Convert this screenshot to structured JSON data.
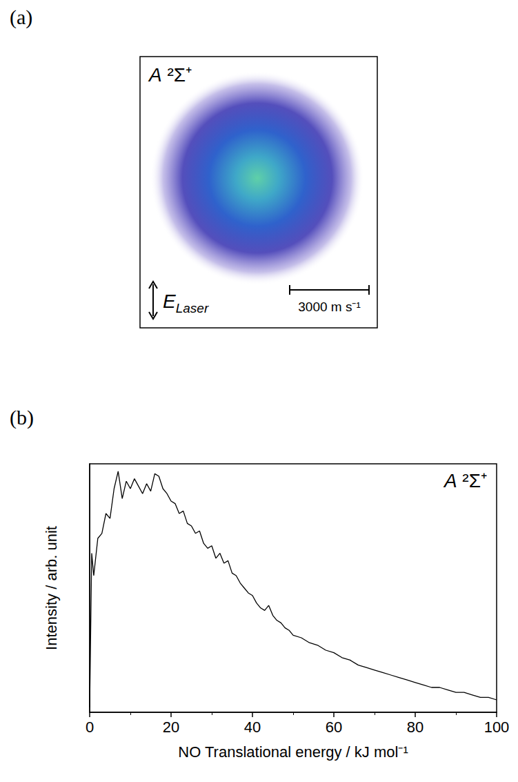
{
  "image_panel": {
    "letter": "(a)",
    "state_label": "A ²Σ⁺",
    "polarization_label": "E",
    "polarization_subscript": "Laser",
    "scale_bar_label": "3000 m s⁻¹"
  },
  "chart_data": {
    "letter": "(b)",
    "type": "line",
    "state_label": "A ²Σ⁺",
    "x_label": "NO Translational energy / kJ mol⁻¹",
    "y_label": "Intensity / arb. unit",
    "x": [
      0,
      0.5,
      1,
      2,
      3,
      4,
      5,
      6,
      7,
      8,
      9,
      10,
      11,
      12,
      13,
      14,
      15,
      16,
      17,
      18,
      19,
      20,
      21,
      22,
      23,
      24,
      25,
      26,
      27,
      28,
      29,
      30,
      31,
      32,
      33,
      34,
      35,
      36,
      37,
      38,
      39,
      40,
      41,
      42,
      43,
      44,
      45,
      46,
      47,
      48,
      49,
      50,
      52,
      54,
      56,
      58,
      60,
      62,
      64,
      66,
      68,
      70,
      72,
      74,
      76,
      78,
      80,
      82,
      84,
      86,
      88,
      90,
      92,
      94,
      96,
      98,
      100
    ],
    "values": [
      0.02,
      0.64,
      0.55,
      0.7,
      0.72,
      0.8,
      0.78,
      0.9,
      0.97,
      0.86,
      0.93,
      0.9,
      0.94,
      0.91,
      0.88,
      0.92,
      0.89,
      0.96,
      0.95,
      0.9,
      0.88,
      0.85,
      0.84,
      0.8,
      0.81,
      0.76,
      0.75,
      0.72,
      0.73,
      0.68,
      0.66,
      0.67,
      0.62,
      0.64,
      0.6,
      0.61,
      0.56,
      0.55,
      0.52,
      0.5,
      0.48,
      0.47,
      0.44,
      0.42,
      0.41,
      0.43,
      0.39,
      0.37,
      0.36,
      0.34,
      0.33,
      0.31,
      0.3,
      0.28,
      0.27,
      0.25,
      0.24,
      0.22,
      0.21,
      0.19,
      0.18,
      0.17,
      0.16,
      0.15,
      0.14,
      0.13,
      0.12,
      0.11,
      0.1,
      0.1,
      0.09,
      0.08,
      0.08,
      0.07,
      0.06,
      0.06,
      0.05
    ],
    "xlim": [
      0,
      100
    ],
    "xticks": [
      0,
      20,
      40,
      60,
      80,
      100
    ],
    "ylim": [
      0,
      1
    ],
    "tick_labels": "x",
    "grid": false,
    "color": "#000000"
  }
}
